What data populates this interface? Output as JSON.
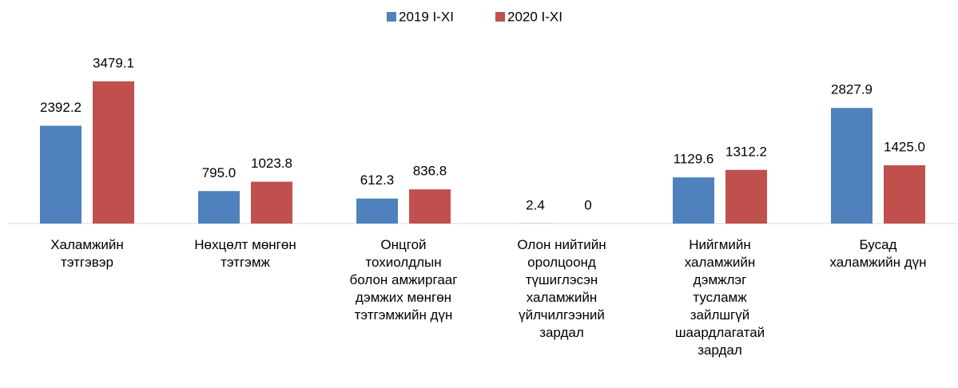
{
  "chart_data": {
    "type": "bar",
    "categories": [
      "Халамжийн\nтэтгэвэр",
      "Нөхцөлт мөнгөн\nтэтгэмж",
      "Онцгой\nтохиолдлын\nболон амжиргааг\nдэмжих мөнгөн\nтэтгэмжийн дүн",
      "Олон нийтийн\nоролцоонд\nтүшиглэсэн\nхаламжийн\nүйлчилгээний\nзардал",
      "Нийгмийн\nхаламжийн\nдэмжлэг\nтусламж\nзайлшгүй\nшаардлагатай\nзардал",
      "Бусад\nхаламжийн дүн"
    ],
    "series": [
      {
        "name": "2019 I-XI",
        "color": "#4f81bd",
        "values": [
          2392.2,
          795.0,
          612.3,
          2.4,
          1129.6,
          2827.9
        ],
        "value_labels": [
          "2392.2",
          "795.0",
          "612.3",
          "2.4",
          "1129.6",
          "2827.9"
        ]
      },
      {
        "name": "2020 I-XI",
        "color": "#c0504d",
        "values": [
          3479.1,
          1023.8,
          836.8,
          0,
          1312.2,
          1425.0
        ],
        "value_labels": [
          "3479.1",
          "1023.8",
          "836.8",
          "0",
          "1312.2",
          "1425.0"
        ]
      }
    ],
    "legend": "top"
  }
}
